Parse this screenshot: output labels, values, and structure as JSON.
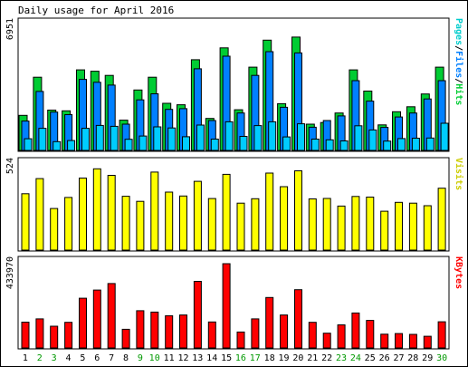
{
  "chart_data": {
    "type": "bar",
    "title": "Daily usage for April 2016",
    "categories": [
      "1",
      "2",
      "3",
      "4",
      "5",
      "6",
      "7",
      "8",
      "9",
      "10",
      "11",
      "12",
      "13",
      "14",
      "15",
      "16",
      "17",
      "18",
      "19",
      "20",
      "21",
      "22",
      "23",
      "24",
      "25",
      "26",
      "27",
      "28",
      "29",
      "30"
    ],
    "weekend_days": [
      "2",
      "3",
      "9",
      "10",
      "16",
      "17",
      "23",
      "24",
      "30"
    ],
    "colors": {
      "hits": "#00cc33",
      "files": "#0080ff",
      "pages": "#00ccff",
      "visits": "#ffff00",
      "kbytes": "#ff0000",
      "weekday_label": "#000000",
      "weekend_label": "#009900",
      "pages_label": "#00cccc",
      "files_label": "#0080ff",
      "hits_label": "#00cc33",
      "visits_label": "#cccc00",
      "kbytes_label": "#ff0000"
    },
    "panels": [
      {
        "id": "hits_files_pages",
        "ylabel": [
          "Pages",
          "Files",
          "Hits"
        ],
        "ylabel_sep": "/",
        "ymax_label": "6951",
        "ymax": 6951,
        "series": [
          {
            "name": "Hits",
            "values": [
              1950,
              4070,
              2240,
              2200,
              4480,
              4400,
              4170,
              1680,
              3360,
              4070,
              2620,
              2540,
              5040,
              1780,
              5700,
              2260,
              4630,
              6130,
              2600,
              6300,
              1460,
              1550,
              2080,
              4480,
              3300,
              1420,
              2150,
              2430,
              3140,
              4630
            ]
          },
          {
            "name": "Files",
            "values": [
              1630,
              3280,
              2130,
              1990,
              3950,
              3790,
              3630,
              1460,
              2810,
              3150,
              2280,
              2320,
              4540,
              1660,
              5240,
              2080,
              4170,
              5490,
              2400,
              5420,
              1290,
              1660,
              1920,
              3880,
              2740,
              1280,
              1860,
              2080,
              2860,
              3880
            ]
          },
          {
            "name": "Pages",
            "values": [
              650,
              1230,
              490,
              550,
              1230,
              1390,
              1340,
              620,
              800,
              1310,
              1250,
              760,
              1410,
              630,
              1590,
              780,
              1380,
              1590,
              750,
              1480,
              630,
              590,
              530,
              1370,
              1140,
              520,
              660,
              680,
              690,
              1510
            ]
          }
        ]
      },
      {
        "id": "visits",
        "ylabel": [
          "Visits"
        ],
        "ymax_label": "524",
        "ymax": 524,
        "series": [
          {
            "name": "Visits",
            "values": [
              347,
              440,
              256,
              324,
              443,
              500,
              460,
              331,
              300,
              480,
              357,
              333,
              423,
              317,
              466,
              289,
              316,
              474,
              390,
              488,
              315,
              318,
              271,
              330,
              326,
              239,
              294,
              289,
              273,
              381
            ]
          }
        ]
      },
      {
        "id": "kbytes",
        "ylabel": [
          "KBytes"
        ],
        "ymax_label": "433970",
        "ymax": 433970,
        "series": [
          {
            "name": "KBytes",
            "values": [
              133000,
              150000,
              112000,
              132000,
              256000,
              298000,
              332000,
              96000,
              192000,
              185000,
              166000,
              170000,
              343000,
              134000,
              433970,
              82000,
              150000,
              260000,
              170000,
              300000,
              132000,
              76000,
              119000,
              180000,
              142000,
              71000,
              74000,
              70000,
              60000,
              135000
            ]
          }
        ]
      }
    ]
  }
}
